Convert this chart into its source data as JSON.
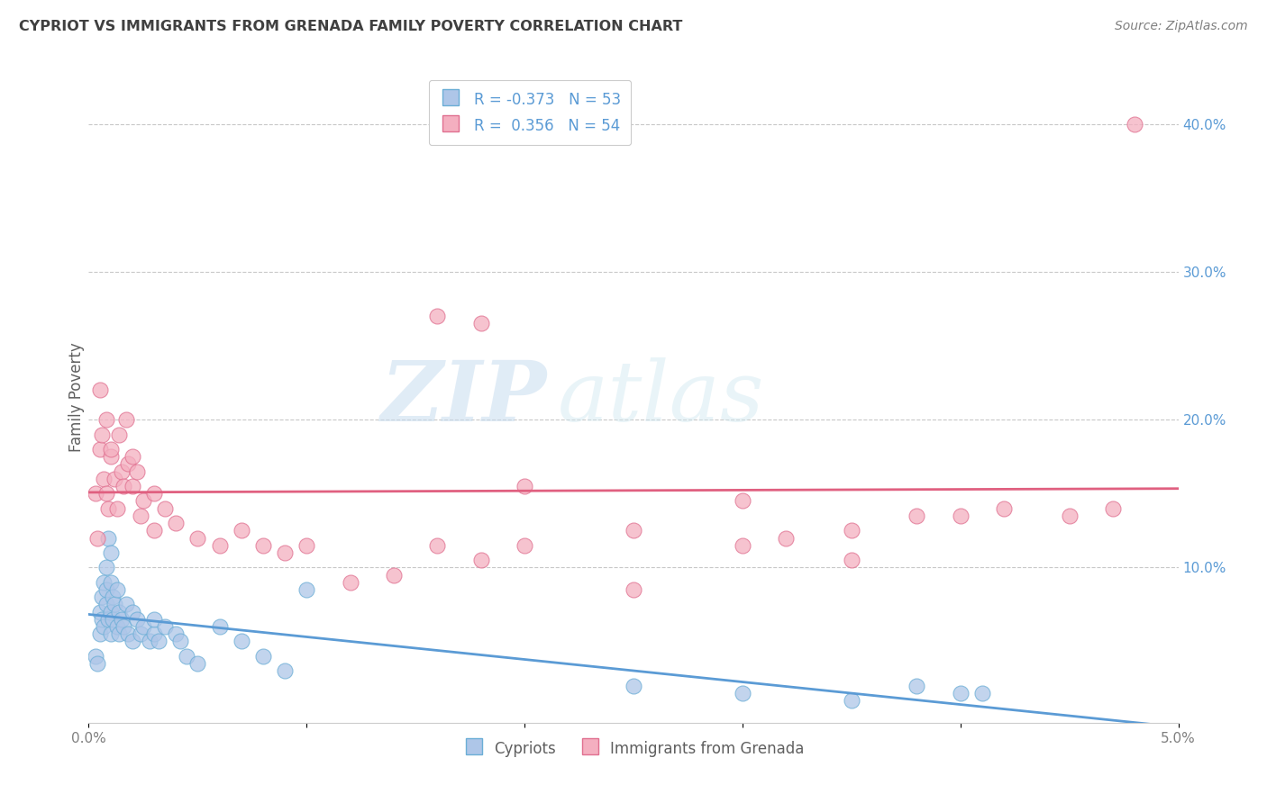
{
  "title": "CYPRIOT VS IMMIGRANTS FROM GRENADA FAMILY POVERTY CORRELATION CHART",
  "source": "Source: ZipAtlas.com",
  "ylabel": "Family Poverty",
  "legend_label_1": "Cypriots",
  "legend_label_2": "Immigrants from Grenada",
  "R1": -0.373,
  "N1": 53,
  "R2": 0.356,
  "N2": 54,
  "color1": "#aec6e8",
  "color2": "#f4afc0",
  "edge_color1": "#6baed6",
  "edge_color2": "#e07090",
  "line_color1": "#5b9bd5",
  "line_color2": "#e06080",
  "xlim": [
    0.0,
    0.05
  ],
  "ylim": [
    -0.005,
    0.435
  ],
  "xtick_positions": [
    0.0,
    0.01,
    0.02,
    0.03,
    0.04,
    0.05
  ],
  "xtick_labels": [
    "0.0%",
    "",
    "",
    "",
    "",
    "5.0%"
  ],
  "yticks_right": [
    0.1,
    0.2,
    0.3,
    0.4
  ],
  "watermark_zip": "ZIP",
  "watermark_atlas": "atlas",
  "background_color": "#ffffff",
  "grid_color": "#c8c8c8",
  "title_color": "#404040",
  "source_color": "#808080",
  "ylabel_color": "#606060",
  "tick_color": "#808080",
  "right_tick_color": "#5b9bd5",
  "cypriot_x": [
    0.0003,
    0.0004,
    0.0005,
    0.0005,
    0.0006,
    0.0006,
    0.0007,
    0.0007,
    0.0008,
    0.0008,
    0.0008,
    0.0009,
    0.0009,
    0.001,
    0.001,
    0.001,
    0.001,
    0.0011,
    0.0011,
    0.0012,
    0.0013,
    0.0013,
    0.0014,
    0.0014,
    0.0015,
    0.0016,
    0.0017,
    0.0018,
    0.002,
    0.002,
    0.0022,
    0.0024,
    0.0025,
    0.0028,
    0.003,
    0.003,
    0.0032,
    0.0035,
    0.004,
    0.0042,
    0.0045,
    0.005,
    0.006,
    0.007,
    0.008,
    0.009,
    0.01,
    0.025,
    0.03,
    0.035,
    0.038,
    0.04,
    0.041
  ],
  "cypriot_y": [
    0.04,
    0.035,
    0.07,
    0.055,
    0.065,
    0.08,
    0.09,
    0.06,
    0.075,
    0.1,
    0.085,
    0.065,
    0.12,
    0.055,
    0.07,
    0.09,
    0.11,
    0.08,
    0.065,
    0.075,
    0.06,
    0.085,
    0.055,
    0.07,
    0.065,
    0.06,
    0.075,
    0.055,
    0.07,
    0.05,
    0.065,
    0.055,
    0.06,
    0.05,
    0.055,
    0.065,
    0.05,
    0.06,
    0.055,
    0.05,
    0.04,
    0.035,
    0.06,
    0.05,
    0.04,
    0.03,
    0.085,
    0.02,
    0.015,
    0.01,
    0.02,
    0.015,
    0.015
  ],
  "grenada_x": [
    0.0003,
    0.0004,
    0.0005,
    0.0005,
    0.0006,
    0.0007,
    0.0008,
    0.0008,
    0.0009,
    0.001,
    0.001,
    0.0012,
    0.0013,
    0.0014,
    0.0015,
    0.0016,
    0.0017,
    0.0018,
    0.002,
    0.002,
    0.0022,
    0.0024,
    0.0025,
    0.003,
    0.003,
    0.0035,
    0.004,
    0.005,
    0.006,
    0.007,
    0.008,
    0.009,
    0.01,
    0.012,
    0.014,
    0.016,
    0.018,
    0.02,
    0.025,
    0.03,
    0.032,
    0.035,
    0.038,
    0.04,
    0.042,
    0.045,
    0.016,
    0.018,
    0.02,
    0.025,
    0.03,
    0.035,
    0.047,
    0.048
  ],
  "grenada_y": [
    0.15,
    0.12,
    0.18,
    0.22,
    0.19,
    0.16,
    0.15,
    0.2,
    0.14,
    0.175,
    0.18,
    0.16,
    0.14,
    0.19,
    0.165,
    0.155,
    0.2,
    0.17,
    0.155,
    0.175,
    0.165,
    0.135,
    0.145,
    0.125,
    0.15,
    0.14,
    0.13,
    0.12,
    0.115,
    0.125,
    0.115,
    0.11,
    0.115,
    0.09,
    0.095,
    0.115,
    0.105,
    0.115,
    0.125,
    0.145,
    0.12,
    0.125,
    0.135,
    0.135,
    0.14,
    0.135,
    0.27,
    0.265,
    0.155,
    0.085,
    0.115,
    0.105,
    0.14,
    0.4
  ]
}
